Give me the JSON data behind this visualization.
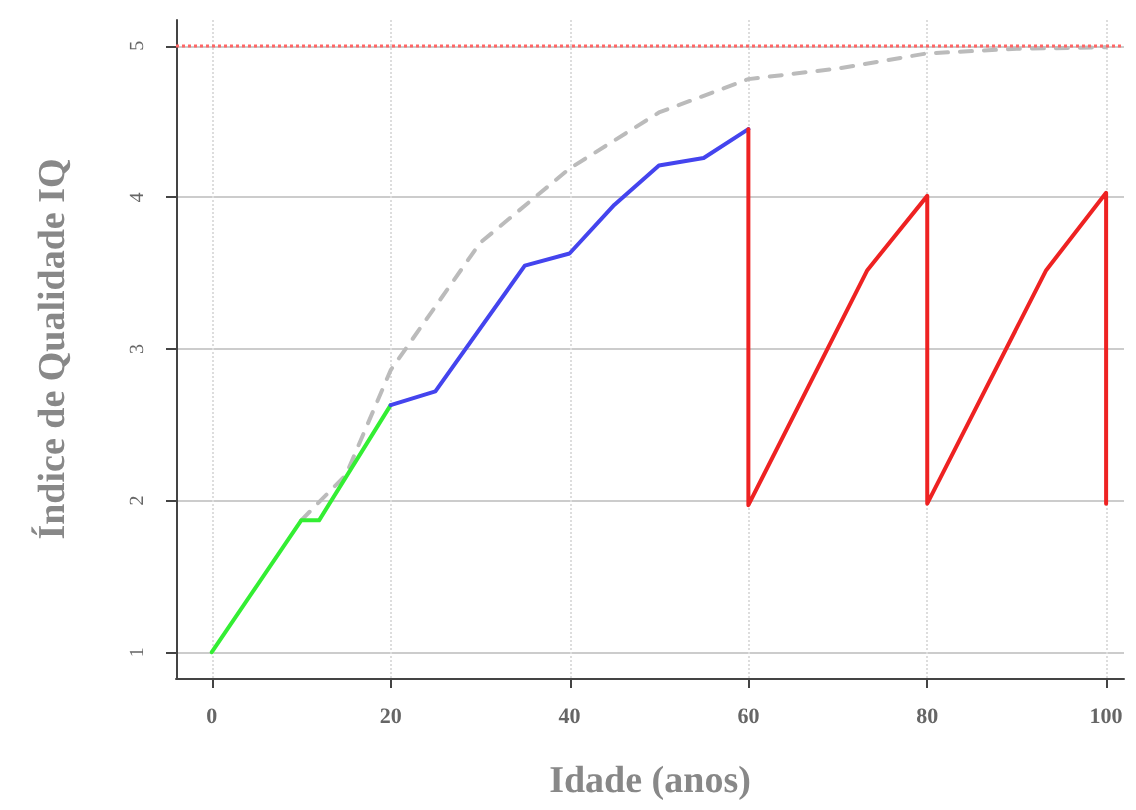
{
  "chart_data": {
    "type": "line",
    "xlabel": "Idade (anos)",
    "ylabel": "Índice de Qualidade IQ",
    "xlim": [
      -4,
      102
    ],
    "ylim": [
      0.83,
      5.17
    ],
    "xticks": [
      0,
      20,
      40,
      60,
      80,
      100
    ],
    "yticks": [
      1,
      2,
      3,
      4,
      5
    ],
    "grid": true,
    "marker": "none",
    "ref_lines": [
      {
        "axis": "y",
        "value": 5,
        "color": "#ff6666",
        "line_style": "dotted"
      }
    ],
    "series": [
      {
        "color": "#bbbbbb",
        "line_style": "dashed",
        "x": [
          10,
          15,
          20,
          30,
          40,
          50,
          60,
          70,
          80,
          90,
          100
        ],
        "values": [
          1.87,
          2.17,
          2.86,
          3.7,
          4.19,
          4.56,
          4.78,
          4.85,
          4.95,
          4.98,
          4.99
        ]
      },
      {
        "color": "#33ee33",
        "line_style": "solid",
        "x": [
          0,
          10,
          12,
          20
        ],
        "values": [
          1,
          1.87,
          1.87,
          2.63
        ]
      },
      {
        "color": "#4444ee",
        "line_style": "solid",
        "x": [
          20,
          25,
          35,
          40,
          45,
          50,
          55,
          60
        ],
        "values": [
          2.63,
          2.72,
          3.55,
          3.63,
          3.95,
          4.21,
          4.26,
          4.45
        ]
      },
      {
        "color": "#ee2222",
        "line_style": "solid",
        "x": [
          60,
          60,
          73.3,
          80,
          80,
          93.3,
          100,
          100
        ],
        "values": [
          4.45,
          1.97,
          3.52,
          4.01,
          1.98,
          3.52,
          4.03,
          1.98
        ]
      }
    ]
  }
}
